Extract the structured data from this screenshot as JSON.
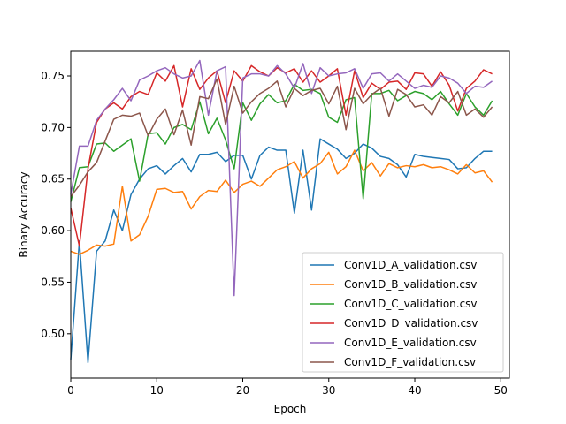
{
  "chart_data": {
    "type": "line",
    "xlabel": "Epoch",
    "ylabel": "Binary Accuracy",
    "xlim": [
      0,
      51
    ],
    "ylim": [
      0.457,
      0.774
    ],
    "xticks": [
      0,
      10,
      20,
      30,
      40,
      50
    ],
    "yticks": [
      0.5,
      0.55,
      0.6,
      0.65,
      0.7,
      0.75
    ],
    "grid": false,
    "legend_position": "lower-right",
    "x": [
      0,
      1,
      2,
      3,
      4,
      5,
      6,
      7,
      8,
      9,
      10,
      11,
      12,
      13,
      14,
      15,
      16,
      17,
      18,
      19,
      20,
      21,
      22,
      23,
      24,
      25,
      26,
      27,
      28,
      29,
      30,
      31,
      32,
      33,
      34,
      35,
      36,
      37,
      38,
      39,
      40,
      41,
      42,
      43,
      44,
      45,
      46,
      47,
      48,
      49
    ],
    "series": [
      {
        "name": "Conv1D_A_validation.csv",
        "color": "#1f77b4",
        "values": [
          0.475,
          0.59,
          0.472,
          0.58,
          0.59,
          0.62,
          0.6,
          0.635,
          0.65,
          0.66,
          0.663,
          0.655,
          0.663,
          0.67,
          0.657,
          0.674,
          0.674,
          0.676,
          0.667,
          0.673,
          0.673,
          0.65,
          0.673,
          0.681,
          0.678,
          0.678,
          0.617,
          0.678,
          0.62,
          0.689,
          0.684,
          0.679,
          0.67,
          0.675,
          0.684,
          0.68,
          0.672,
          0.67,
          0.664,
          0.652,
          0.674,
          0.672,
          0.671,
          0.67,
          0.669,
          0.66,
          0.661,
          0.67,
          0.677,
          0.677
        ]
      },
      {
        "name": "Conv1D_B_validation.csv",
        "color": "#ff7f0e",
        "values": [
          0.58,
          0.577,
          0.581,
          0.586,
          0.585,
          0.587,
          0.643,
          0.59,
          0.596,
          0.614,
          0.64,
          0.641,
          0.637,
          0.638,
          0.621,
          0.633,
          0.639,
          0.638,
          0.649,
          0.637,
          0.645,
          0.648,
          0.643,
          0.651,
          0.659,
          0.662,
          0.667,
          0.651,
          0.66,
          0.665,
          0.676,
          0.655,
          0.662,
          0.678,
          0.658,
          0.666,
          0.653,
          0.665,
          0.661,
          0.663,
          0.662,
          0.664,
          0.661,
          0.662,
          0.659,
          0.655,
          0.664,
          0.656,
          0.658,
          0.647
        ]
      },
      {
        "name": "Conv1D_C_validation.csv",
        "color": "#2ca02c",
        "values": [
          0.628,
          0.661,
          0.662,
          0.684,
          0.685,
          0.677,
          0.683,
          0.689,
          0.648,
          0.694,
          0.695,
          0.684,
          0.7,
          0.703,
          0.698,
          0.725,
          0.694,
          0.709,
          0.688,
          0.66,
          0.724,
          0.707,
          0.723,
          0.732,
          0.724,
          0.726,
          0.742,
          0.736,
          0.737,
          0.733,
          0.71,
          0.705,
          0.727,
          0.729,
          0.631,
          0.733,
          0.733,
          0.736,
          0.726,
          0.731,
          0.735,
          0.733,
          0.727,
          0.735,
          0.723,
          0.712,
          0.733,
          0.72,
          0.712,
          0.726
        ]
      },
      {
        "name": "Conv1D_D_validation.csv",
        "color": "#d62728",
        "values": [
          0.622,
          0.585,
          0.66,
          0.705,
          0.718,
          0.724,
          0.718,
          0.73,
          0.735,
          0.732,
          0.753,
          0.745,
          0.76,
          0.72,
          0.757,
          0.737,
          0.748,
          0.755,
          0.724,
          0.755,
          0.745,
          0.76,
          0.754,
          0.75,
          0.758,
          0.753,
          0.757,
          0.744,
          0.755,
          0.744,
          0.75,
          0.757,
          0.712,
          0.755,
          0.729,
          0.743,
          0.737,
          0.744,
          0.745,
          0.737,
          0.753,
          0.752,
          0.74,
          0.754,
          0.741,
          0.716,
          0.738,
          0.745,
          0.756,
          0.752
        ]
      },
      {
        "name": "Conv1D_E_validation.csv",
        "color": "#9467bd",
        "values": [
          0.635,
          0.682,
          0.682,
          0.707,
          0.718,
          0.727,
          0.738,
          0.726,
          0.746,
          0.75,
          0.755,
          0.758,
          0.752,
          0.748,
          0.75,
          0.765,
          0.712,
          0.755,
          0.759,
          0.537,
          0.748,
          0.752,
          0.752,
          0.75,
          0.76,
          0.752,
          0.738,
          0.762,
          0.733,
          0.758,
          0.75,
          0.752,
          0.753,
          0.757,
          0.738,
          0.752,
          0.753,
          0.745,
          0.752,
          0.745,
          0.738,
          0.741,
          0.739,
          0.75,
          0.748,
          0.743,
          0.733,
          0.74,
          0.739,
          0.745
        ]
      },
      {
        "name": "Conv1D_F_validation.csv",
        "color": "#8c564b",
        "values": [
          0.633,
          0.644,
          0.657,
          0.666,
          0.687,
          0.708,
          0.712,
          0.711,
          0.714,
          0.692,
          0.708,
          0.718,
          0.693,
          0.717,
          0.683,
          0.73,
          0.728,
          0.747,
          0.703,
          0.74,
          0.714,
          0.725,
          0.733,
          0.738,
          0.745,
          0.72,
          0.738,
          0.731,
          0.736,
          0.738,
          0.723,
          0.74,
          0.698,
          0.738,
          0.723,
          0.732,
          0.738,
          0.711,
          0.737,
          0.732,
          0.72,
          0.722,
          0.712,
          0.73,
          0.724,
          0.735,
          0.712,
          0.718,
          0.71,
          0.72
        ]
      }
    ]
  }
}
